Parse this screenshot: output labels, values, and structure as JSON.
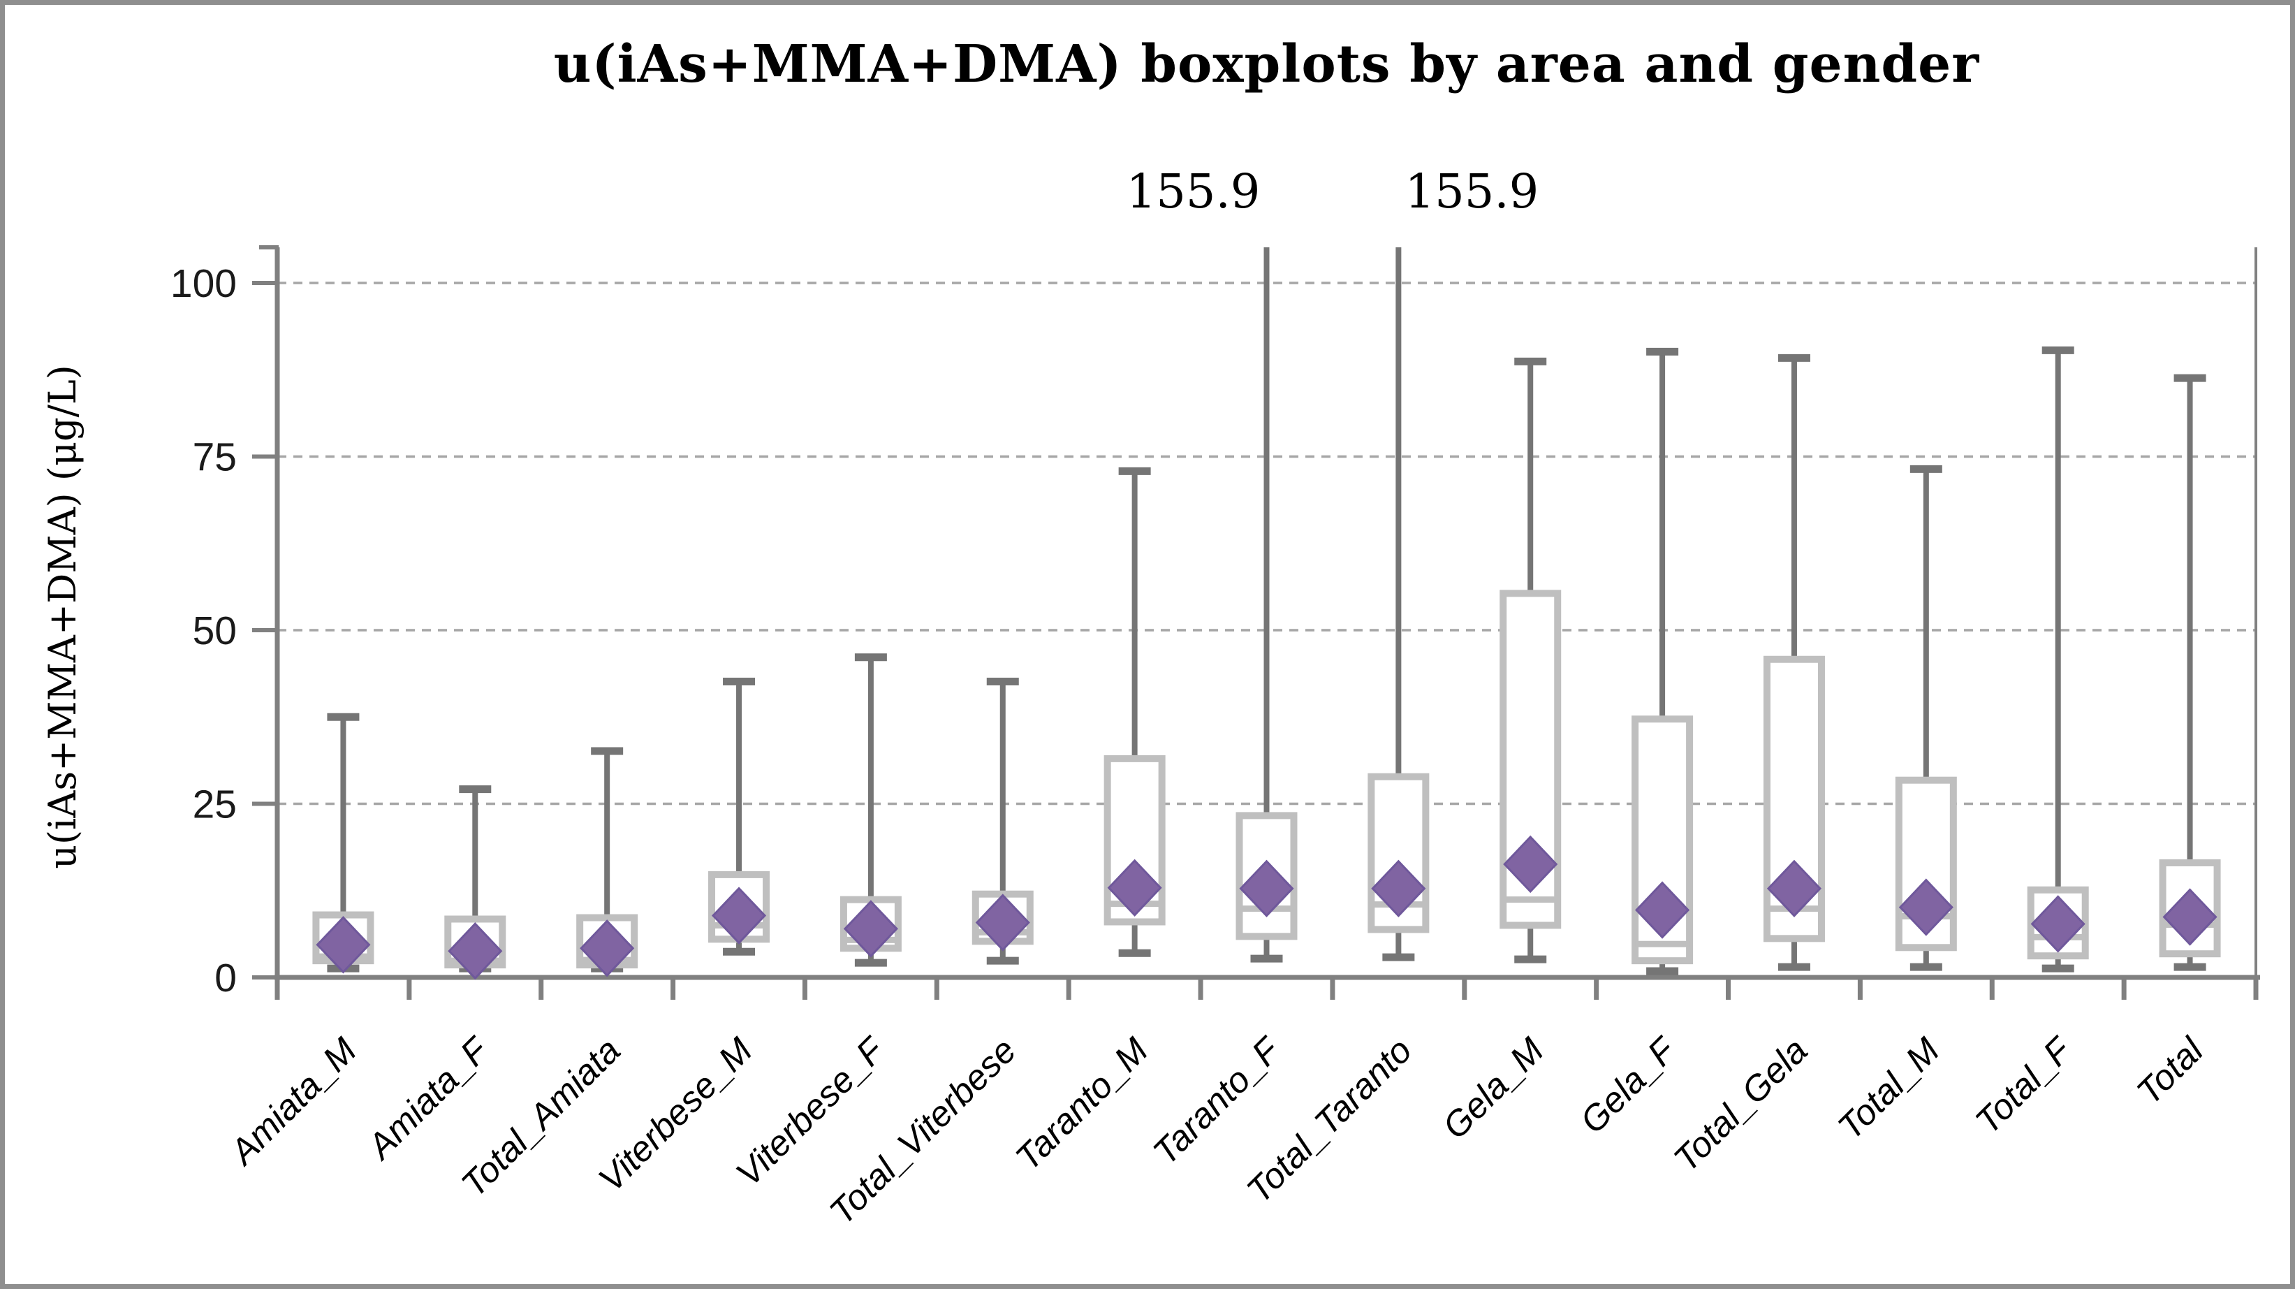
{
  "figure": {
    "title": "u(iAs+MMA+DMA) boxplots by area and gender",
    "border_color": "#8f8f8f",
    "background": "#ffffff"
  },
  "chart_data": {
    "type": "boxplot",
    "title": "u(iAs+MMA+DMA) boxplots by area and gender",
    "xlabel": "",
    "ylabel": "u(iAs+MMA+DMA) (μg/L)",
    "ylim": [
      0,
      105
    ],
    "yticks": [
      0,
      25,
      50,
      75,
      100
    ],
    "grid": "horizontal dashed gridlines at 25, 50, 75, 100",
    "legend": "none",
    "categories": [
      "Amiata_M",
      "Amiata_F",
      "Total_Amiata",
      "Viterbese_M",
      "Viterbese_F",
      "Total_Viterbese",
      "Taranto_M",
      "Taranto_F",
      "Total_Taranto",
      "Gela_M",
      "Gela_F",
      "Total_Gela",
      "Total_M",
      "Total_F",
      "Total"
    ],
    "series": [
      {
        "name": "Amiata_M",
        "whisker_low": 1.3,
        "q1": 2.4,
        "median": 3.0,
        "q3": 9.0,
        "whisker_high": 37.5,
        "mean": 4.7,
        "clipped": false
      },
      {
        "name": "Amiata_F",
        "whisker_low": 1.3,
        "q1": 1.8,
        "median": 2.4,
        "q3": 8.4,
        "whisker_high": 27.1,
        "mean": 3.8,
        "clipped": false
      },
      {
        "name": "Total_Amiata",
        "whisker_low": 1.3,
        "q1": 1.8,
        "median": 2.5,
        "q3": 8.6,
        "whisker_high": 32.6,
        "mean": 4.2,
        "clipped": false
      },
      {
        "name": "Viterbese_M",
        "whisker_low": 3.7,
        "q1": 5.5,
        "median": 7.5,
        "q3": 14.8,
        "whisker_high": 42.6,
        "mean": 8.9,
        "clipped": false
      },
      {
        "name": "Viterbese_F",
        "whisker_low": 2.1,
        "q1": 4.2,
        "median": 5.4,
        "q3": 11.2,
        "whisker_high": 46.1,
        "mean": 7.0,
        "clipped": false
      },
      {
        "name": "Total_Viterbese",
        "whisker_low": 2.4,
        "q1": 5.2,
        "median": 6.5,
        "q3": 12.0,
        "whisker_high": 42.6,
        "mean": 7.9,
        "clipped": false
      },
      {
        "name": "Taranto_M",
        "whisker_low": 3.5,
        "q1": 8.0,
        "median": 10.6,
        "q3": 31.5,
        "whisker_high": 72.9,
        "mean": 12.9,
        "clipped": false
      },
      {
        "name": "Taranto_F",
        "whisker_low": 2.7,
        "q1": 5.9,
        "median": 9.9,
        "q3": 23.3,
        "whisker_high": 155.9,
        "mean": 12.8,
        "clipped": true
      },
      {
        "name": "Total_Taranto",
        "whisker_low": 2.9,
        "q1": 6.9,
        "median": 10.5,
        "q3": 28.9,
        "whisker_high": 155.9,
        "mean": 12.8,
        "clipped": true
      },
      {
        "name": "Gela_M",
        "whisker_low": 2.6,
        "q1": 7.5,
        "median": 11.2,
        "q3": 55.3,
        "whisker_high": 88.7,
        "mean": 16.3,
        "clipped": false
      },
      {
        "name": "Gela_F",
        "whisker_low": 0.9,
        "q1": 2.4,
        "median": 4.8,
        "q3": 37.2,
        "whisker_high": 90.1,
        "mean": 9.7,
        "clipped": false
      },
      {
        "name": "Total_Gela",
        "whisker_low": 1.5,
        "q1": 5.6,
        "median": 9.9,
        "q3": 45.8,
        "whisker_high": 89.2,
        "mean": 12.8,
        "clipped": false
      },
      {
        "name": "Total_M",
        "whisker_low": 1.5,
        "q1": 4.3,
        "median": 8.8,
        "q3": 28.4,
        "whisker_high": 73.2,
        "mean": 10.1,
        "clipped": false
      },
      {
        "name": "Total_F",
        "whisker_low": 1.3,
        "q1": 3.1,
        "median": 5.8,
        "q3": 12.6,
        "whisker_high": 90.3,
        "mean": 7.7,
        "clipped": false
      },
      {
        "name": "Total",
        "whisker_low": 1.5,
        "q1": 3.4,
        "median": 7.6,
        "q3": 16.5,
        "whisker_high": 86.3,
        "mean": 8.7,
        "clipped": false
      }
    ],
    "annotations": [
      {
        "text": "155.9",
        "category": "Taranto_F",
        "category_index": 7,
        "dx": -105
      },
      {
        "text": "155.9",
        "category": "Total_Taranto",
        "category_index": 8,
        "dx": 105
      }
    ],
    "colors": {
      "box_stroke": "#bfbfbf",
      "median_line": "#bfbfbf",
      "whisker": "#757575",
      "axis": "#808080",
      "gridline": "#a6a6a6",
      "mean_diamond_fill": "#8064a2",
      "mean_diamond_stroke": "#6f589b",
      "text": "#000000"
    }
  }
}
